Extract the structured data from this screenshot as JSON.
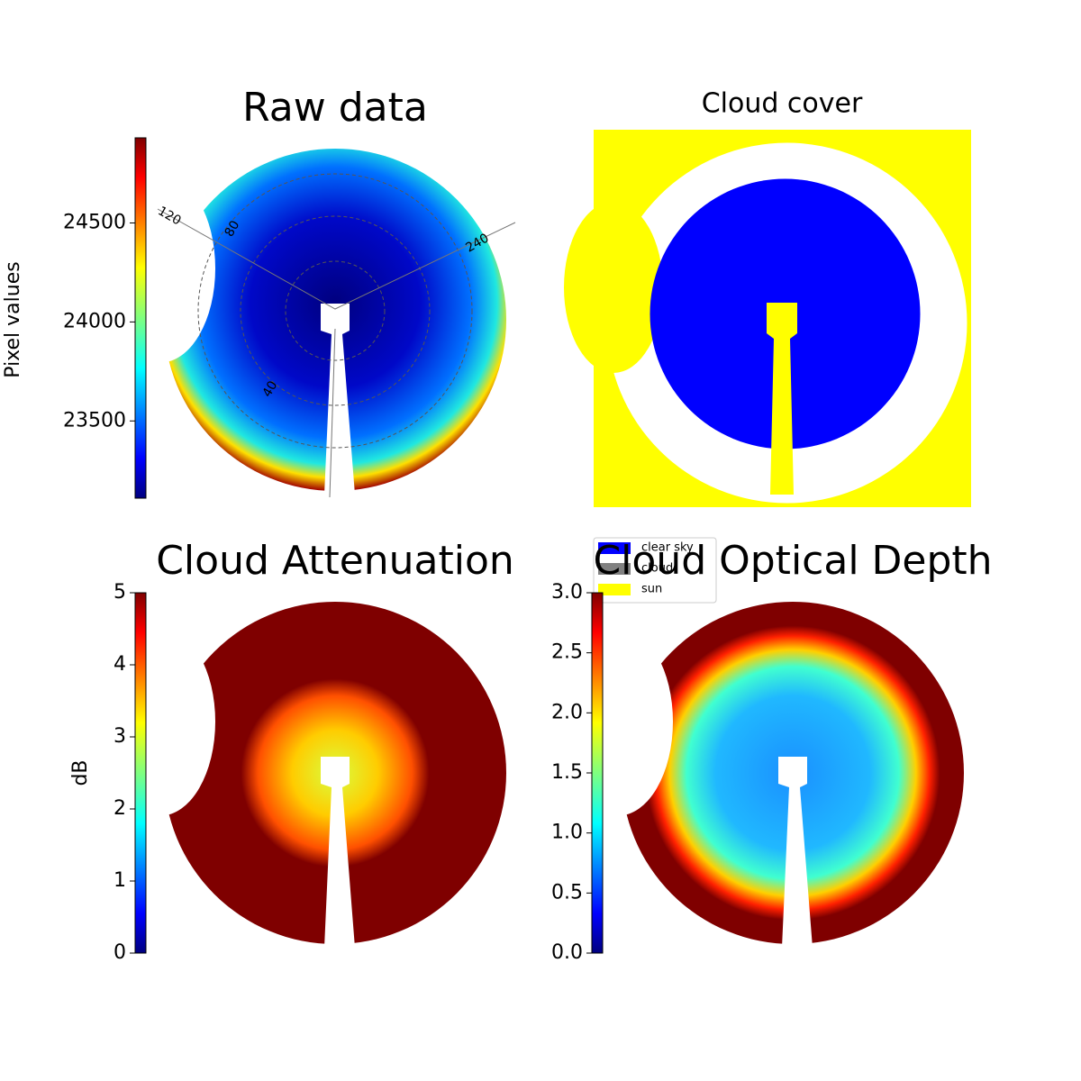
{
  "chart_data": [
    {
      "type": "heatmap",
      "title": "Raw data",
      "colorbar_label": "Pixel values",
      "colormap": "jet",
      "clim": [
        23110,
        24930
      ],
      "cticks": [
        23500,
        24000,
        24500
      ],
      "annotations": [
        "120",
        "80",
        "240",
        "40"
      ]
    },
    {
      "type": "mask",
      "title": "Cloud cover",
      "legend": [
        {
          "name": "clear sky",
          "color": "#0000ff"
        },
        {
          "name": "cloud",
          "color": "#808080"
        },
        {
          "name": "sun",
          "color": "#ffff00"
        }
      ]
    },
    {
      "type": "heatmap",
      "title": "Cloud Attenuation",
      "colorbar_label": "dB",
      "colormap": "jet",
      "clim": [
        0,
        5
      ],
      "cticks": [
        0,
        1,
        2,
        3,
        4,
        5
      ]
    },
    {
      "type": "heatmap",
      "title": "Cloud Optical Depth",
      "colormap": "jet",
      "clim": [
        0,
        3
      ],
      "cticks": [
        {
          "value": 0,
          "label": "0.0"
        },
        {
          "value": 0.5,
          "label": "0.5"
        },
        {
          "value": 1,
          "label": "1.0"
        },
        {
          "value": 1.5,
          "label": "1.5"
        },
        {
          "value": 2,
          "label": "2.0"
        },
        {
          "value": 2.5,
          "label": "2.5"
        },
        {
          "value": 3,
          "label": "3.0"
        }
      ]
    }
  ]
}
